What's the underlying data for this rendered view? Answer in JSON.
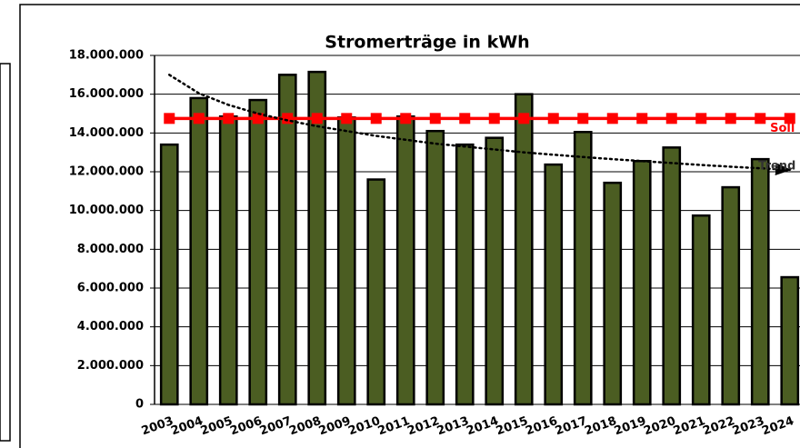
{
  "chart_data": {
    "type": "bar",
    "title": "Stromerträge in kWh",
    "categories": [
      "2003",
      "2004",
      "2005",
      "2006",
      "2007",
      "2008",
      "2009",
      "2010",
      "2011",
      "2012",
      "2013",
      "2014",
      "2015",
      "2016",
      "2017",
      "2018",
      "2019",
      "2020",
      "2021",
      "2022",
      "2023",
      "2024"
    ],
    "series": [
      {
        "name": "Stromerträge",
        "type": "bar",
        "color": "#4b5d22",
        "values": [
          13400000,
          15800000,
          14850000,
          15700000,
          17000000,
          17150000,
          14800000,
          11600000,
          14850000,
          14100000,
          13400000,
          13750000,
          16000000,
          12370000,
          14050000,
          11430000,
          12550000,
          13250000,
          9740000,
          11200000,
          12650000,
          6560000
        ]
      },
      {
        "name": "Soll",
        "type": "line",
        "color": "#ff0000",
        "marker": "square",
        "values": [
          14750000,
          14750000,
          14750000,
          14750000,
          14750000,
          14750000,
          14750000,
          14750000,
          14750000,
          14750000,
          14750000,
          14750000,
          14750000,
          14750000,
          14750000,
          14750000,
          14750000,
          14750000,
          14750000,
          14750000,
          14750000,
          14750000
        ]
      },
      {
        "name": "Trend",
        "type": "line",
        "color": "#000000",
        "dash": "dotted",
        "values": [
          17000000,
          16050000,
          15450000,
          15000000,
          14650000,
          14350000,
          14100000,
          13850000,
          13650000,
          13450000,
          13300000,
          13150000,
          13000000,
          12880000,
          12760000,
          12650000,
          12550000,
          12450000,
          12350000,
          12260000,
          12180000,
          12100000
        ]
      }
    ],
    "ylim": [
      0,
      18000000
    ],
    "yticks": [
      0,
      {
        "value": 2000000,
        "label": "2.000.000"
      },
      {
        "value": 4000000,
        "label": "4.000.000"
      },
      {
        "value": 6000000,
        "label": "6.000.000"
      },
      {
        "value": 8000000,
        "label": "8.000.000"
      },
      {
        "value": 10000000,
        "label": "10.000.000"
      },
      {
        "value": 12000000,
        "label": "12.000.000"
      },
      {
        "value": 14000000,
        "label": "14.000.000"
      },
      {
        "value": 16000000,
        "label": "16.000.000"
      },
      {
        "value": 18000000,
        "label": "18.000.000"
      }
    ],
    "grid": true
  }
}
